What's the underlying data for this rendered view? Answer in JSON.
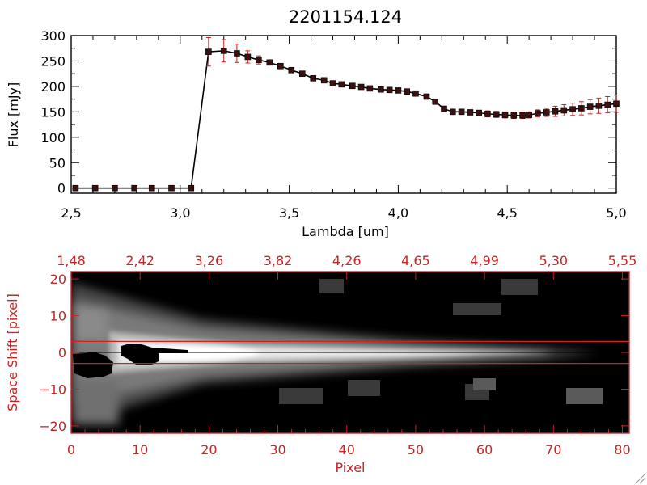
{
  "title": "2201154.124",
  "colors": {
    "axis": "#000000",
    "accent": "#cc2222",
    "marker": "#3a1010",
    "background": "#ffffff"
  },
  "chart_data": [
    {
      "type": "line",
      "title": "2201154.124",
      "xlabel": "Lambda [um]",
      "ylabel": "Flux [mJy]",
      "xlim": [
        2.5,
        5.0
      ],
      "ylim": [
        -10,
        300
      ],
      "xticks": [
        "2.5",
        "3.0",
        "3.5",
        "4.0",
        "4.5",
        "5.0"
      ],
      "yticks": [
        "0",
        "50",
        "100",
        "150",
        "200",
        "250",
        "300"
      ],
      "grid": false,
      "series": [
        {
          "x": [
            2.52,
            2.61,
            2.7,
            2.79,
            2.87,
            2.96,
            3.05,
            3.13,
            3.2,
            3.26,
            3.31,
            3.36,
            3.41,
            3.46,
            3.51,
            3.56,
            3.61,
            3.66,
            3.7,
            3.74,
            3.79,
            3.83,
            3.87,
            3.92,
            3.96,
            4.0,
            4.04,
            4.08,
            4.13,
            4.17,
            4.21,
            4.25,
            4.29,
            4.33,
            4.37,
            4.41,
            4.45,
            4.49,
            4.53,
            4.57,
            4.6,
            4.64,
            4.68,
            4.72,
            4.76,
            4.8,
            4.84,
            4.88,
            4.92,
            4.96,
            5.0
          ],
          "y": [
            0,
            0,
            0,
            0,
            0,
            0,
            0,
            268,
            270,
            265,
            258,
            252,
            247,
            240,
            232,
            225,
            216,
            212,
            206,
            204,
            201,
            199,
            196,
            194,
            193,
            192,
            190,
            186,
            180,
            170,
            156,
            150,
            150,
            149,
            148,
            146,
            145,
            144,
            143,
            143,
            144,
            147,
            149,
            151,
            153,
            155,
            157,
            160,
            162,
            164,
            166
          ],
          "yerr": [
            0,
            0,
            0,
            0,
            0,
            0,
            0,
            28,
            22,
            18,
            12,
            8,
            4,
            3,
            3,
            3,
            3,
            3,
            3,
            3,
            3,
            3,
            3,
            3,
            3,
            3,
            3,
            4,
            4,
            4,
            5,
            5,
            5,
            5,
            5,
            6,
            6,
            6,
            6,
            6,
            6,
            7,
            8,
            10,
            11,
            12,
            13,
            14,
            15,
            16,
            17
          ]
        }
      ]
    },
    {
      "type": "heatmap",
      "xlabel": "Pixel",
      "ylabel": "Space Shift [pixel]",
      "xlim": [
        0,
        81
      ],
      "ylim": [
        -22,
        22
      ],
      "xticks": [
        "0",
        "10",
        "20",
        "30",
        "40",
        "50",
        "60",
        "70",
        "80"
      ],
      "yticks": [
        "-20",
        "-10",
        "0",
        "10",
        "20"
      ],
      "top_ticks": [
        "1.48",
        "2.42",
        "3.26",
        "3.82",
        "4.26",
        "4.65",
        "4.99",
        "5.30",
        "5.55"
      ],
      "aperture": [
        -3,
        3
      ],
      "trace_y": 0
    }
  ]
}
